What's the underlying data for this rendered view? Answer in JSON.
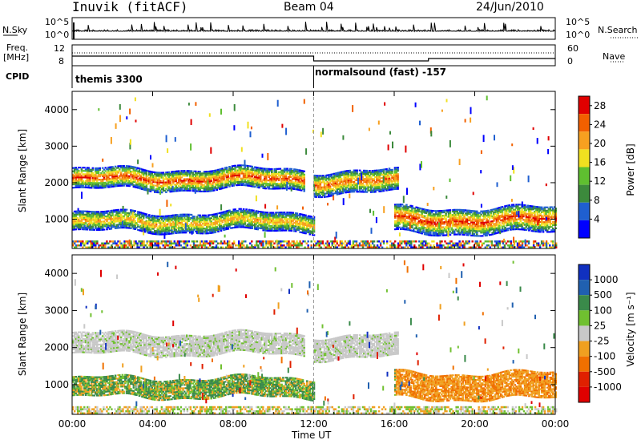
{
  "header": {
    "station": "Inuvik (fitACF)",
    "beam": "Beam 04",
    "date": "24/Jun/2010"
  },
  "sky_panel": {
    "left_label": "N.Sky",
    "right_label": "N.Search",
    "left_ticks": [
      "10^5",
      "10^0"
    ],
    "right_ticks": [
      "10^5",
      "10^0"
    ]
  },
  "freq_panel": {
    "left_label_1": "Freq.",
    "left_label_2": "[MHz]",
    "right_label": "Nave",
    "left_ticks": [
      "12",
      "8"
    ],
    "right_ticks": [
      "60",
      "0"
    ]
  },
  "cpid_panel": {
    "label": "CPID",
    "mode_1": "themis 3300",
    "mode_2": "normalsound (fast) -157"
  },
  "colors": {
    "power_scale": [
      "#0000ff",
      "#1f5fd0",
      "#3c8a3c",
      "#5fbf30",
      "#f0e020",
      "#f7a020",
      "#f26000",
      "#e00000"
    ],
    "velocity_scale": [
      "#1030c0",
      "#2060b0",
      "#3a8a4a",
      "#70c030",
      "#c8c8c8",
      "#f0a020",
      "#f07000",
      "#e02000",
      "#e00000"
    ]
  },
  "chart_data": [
    {
      "type": "heatmap",
      "title": "Power",
      "ylabel": "Slant Range [km]",
      "xlabel": "",
      "x_ticks": [
        "00:00",
        "04:00",
        "08:00",
        "12:00",
        "16:00",
        "20:00",
        "00:00"
      ],
      "y_ticks": [
        "1000",
        "2000",
        "3000",
        "4000"
      ],
      "ylim": [
        200,
        4500
      ],
      "xlim_hours": [
        0,
        24
      ],
      "colorbar": {
        "label": "Power [dB]",
        "ticks": [
          "4",
          "8",
          "12",
          "16",
          "20",
          "24",
          "28"
        ],
        "range": [
          0,
          30
        ]
      },
      "echo_bands": [
        {
          "start_hour": 0,
          "end_hour": 11.5,
          "range_km": [
            1800,
            2350
          ],
          "peak_db": 26
        },
        {
          "start_hour": 12,
          "end_hour": 16.2,
          "range_km": [
            1700,
            2300
          ],
          "peak_db": 24
        },
        {
          "start_hour": 0,
          "end_hour": 12,
          "range_km": [
            650,
            1150
          ],
          "peak_db": 20
        },
        {
          "start_hour": 16,
          "end_hour": 24,
          "range_km": [
            600,
            1300
          ],
          "peak_db": 26
        }
      ]
    },
    {
      "type": "heatmap",
      "title": "Velocity",
      "ylabel": "Slant Range [km]",
      "xlabel": "Time UT",
      "x_ticks": [
        "00:00",
        "04:00",
        "08:00",
        "12:00",
        "16:00",
        "20:00",
        "00:00"
      ],
      "y_ticks": [
        "1000",
        "2000",
        "3000",
        "4000"
      ],
      "ylim": [
        200,
        4500
      ],
      "xlim_hours": [
        0,
        24
      ],
      "colorbar": {
        "label": "Velocity [m s⁻¹]",
        "ticks": [
          "1000",
          "500",
          "100",
          "25",
          "-25",
          "-100",
          "-500",
          "-1000"
        ]
      }
    }
  ]
}
